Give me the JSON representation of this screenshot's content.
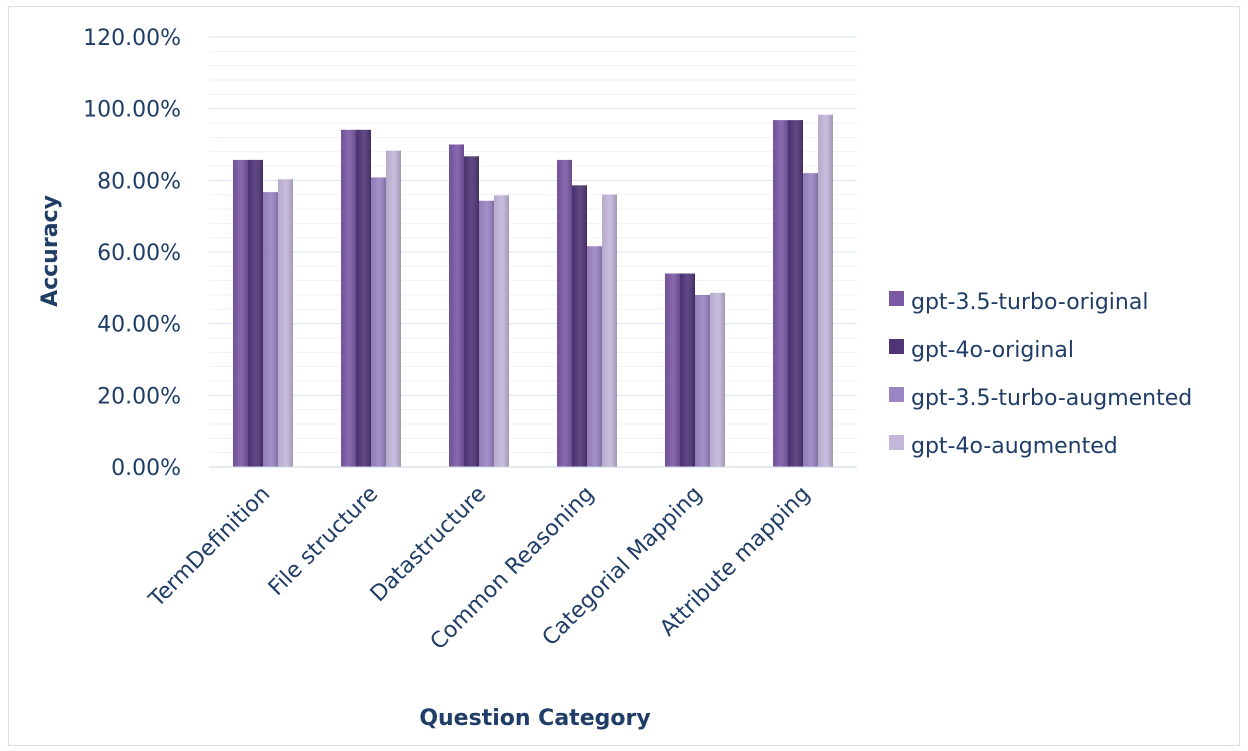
{
  "chart_data": {
    "type": "bar",
    "title": "",
    "xlabel": "Question Category",
    "ylabel": "Accuracy",
    "categories": [
      "TermDefinition",
      "File structure",
      "Datastructure",
      "Common Reasoning",
      "Categorial Mapping",
      "Attribute mapping"
    ],
    "series": [
      {
        "name": "gpt-3.5-turbo-original",
        "values": [
          85.7,
          94.1,
          90.0,
          85.7,
          54.0,
          96.8
        ],
        "color": "#7b58a6"
      },
      {
        "name": "gpt-4o-original",
        "values": [
          85.7,
          94.1,
          86.7,
          78.6,
          54.0,
          96.8
        ],
        "color": "#4f3577"
      },
      {
        "name": "gpt-3.5-turbo-augmented",
        "values": [
          76.7,
          80.8,
          74.3,
          61.6,
          48.0,
          82.0
        ],
        "color": "#9b84c4"
      },
      {
        "name": "gpt-4o-augmented",
        "values": [
          80.3,
          88.3,
          75.8,
          76.0,
          48.6,
          98.3
        ],
        "color": "#c3b7da"
      }
    ],
    "ylim": [
      0,
      120
    ],
    "yticks": [
      "0.00%",
      "20.00%",
      "40.00%",
      "60.00%",
      "80.00%",
      "100.00%",
      "120.00%"
    ],
    "grid": true,
    "legend": "right"
  }
}
